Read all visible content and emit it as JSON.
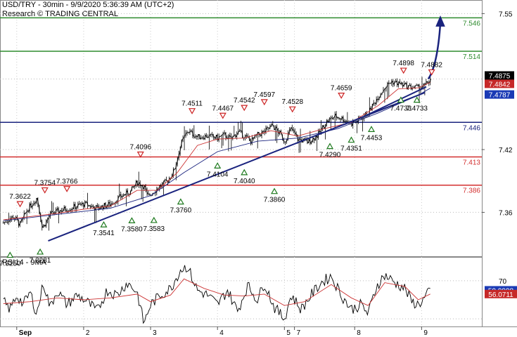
{
  "header": {
    "line1": "USD/TRY - 30min - 9/9/2020 5:36:39 AM (UTC+2)",
    "line2": "Research © TRADING CENTRAL"
  },
  "rsi_header": "RSI14 - 9MA",
  "colors": {
    "resistance": "#2e8b2e",
    "pivot": "#1a237e",
    "support": "#d32f2f",
    "price": "#000000",
    "ma": "#cc3333",
    "trendline": "#1a237e",
    "arrow": "#1a237e",
    "marker_red": "#cc2222",
    "marker_green": "#1e7a1e"
  },
  "chart_data": [
    {
      "type": "line",
      "subtype": "candlestick",
      "yaxis_side": "right",
      "ylim": [
        7.318,
        7.563
      ],
      "y_ticks": [
        7.36,
        7.42,
        7.55
      ],
      "x_ticks": [
        {
          "label": "Sep",
          "x": 0
        },
        {
          "label": "2",
          "x": 1
        },
        {
          "label": "3",
          "x": 2
        },
        {
          "label": "4",
          "x": 3
        },
        {
          "label": "5",
          "x": 4
        },
        {
          "label": "7",
          "x": 4.15
        },
        {
          "label": "8",
          "x": 5.05
        },
        {
          "label": "9",
          "x": 6.05
        }
      ],
      "xlim": [
        -0.25,
        6.95
      ],
      "hlines": [
        {
          "value": 7.546,
          "label": "7.546",
          "role": "resistance"
        },
        {
          "value": 7.514,
          "label": "7.514",
          "role": "resistance"
        },
        {
          "value": 7.446,
          "label": "7.446",
          "role": "pivot"
        },
        {
          "value": 7.413,
          "label": "7.413",
          "role": "support"
        },
        {
          "value": 7.386,
          "label": "7.386",
          "role": "support"
        }
      ],
      "price_labels": [
        {
          "label": "7.4875",
          "value": 7.4875,
          "style": "black"
        },
        {
          "label": "7.4842",
          "value": 7.4842,
          "style": "red"
        },
        {
          "label": "7.4787",
          "value": 7.4787,
          "style": "blue"
        }
      ],
      "price_path": [
        {
          "x": -0.2,
          "y": 7.35
        },
        {
          "x": -0.05,
          "y": 7.356
        },
        {
          "x": 0.05,
          "y": 7.348
        },
        {
          "x": 0.15,
          "y": 7.362
        },
        {
          "x": 0.3,
          "y": 7.374
        },
        {
          "x": 0.38,
          "y": 7.345
        },
        {
          "x": 0.5,
          "y": 7.358
        },
        {
          "x": 0.65,
          "y": 7.362
        },
        {
          "x": 0.8,
          "y": 7.364
        },
        {
          "x": 1.0,
          "y": 7.368
        },
        {
          "x": 1.2,
          "y": 7.364
        },
        {
          "x": 1.4,
          "y": 7.368
        },
        {
          "x": 1.55,
          "y": 7.375
        },
        {
          "x": 1.7,
          "y": 7.38
        },
        {
          "x": 1.8,
          "y": 7.389
        },
        {
          "x": 1.9,
          "y": 7.385
        },
        {
          "x": 1.95,
          "y": 7.375
        },
        {
          "x": 2.1,
          "y": 7.383
        },
        {
          "x": 2.25,
          "y": 7.39
        },
        {
          "x": 2.35,
          "y": 7.4
        },
        {
          "x": 2.45,
          "y": 7.425
        },
        {
          "x": 2.55,
          "y": 7.438
        },
        {
          "x": 2.7,
          "y": 7.432
        },
        {
          "x": 2.85,
          "y": 7.433
        },
        {
          "x": 3.0,
          "y": 7.431
        },
        {
          "x": 3.1,
          "y": 7.434
        },
        {
          "x": 3.2,
          "y": 7.43
        },
        {
          "x": 3.3,
          "y": 7.437
        },
        {
          "x": 3.4,
          "y": 7.433
        },
        {
          "x": 3.5,
          "y": 7.428
        },
        {
          "x": 3.6,
          "y": 7.434
        },
        {
          "x": 3.7,
          "y": 7.437
        },
        {
          "x": 3.82,
          "y": 7.443
        },
        {
          "x": 3.92,
          "y": 7.436
        },
        {
          "x": 4.0,
          "y": 7.428
        },
        {
          "x": 4.1,
          "y": 7.44
        },
        {
          "x": 4.2,
          "y": 7.43
        },
        {
          "x": 4.35,
          "y": 7.427
        },
        {
          "x": 4.5,
          "y": 7.434
        },
        {
          "x": 4.62,
          "y": 7.446
        },
        {
          "x": 4.75,
          "y": 7.452
        },
        {
          "x": 4.85,
          "y": 7.45
        },
        {
          "x": 5.0,
          "y": 7.445
        },
        {
          "x": 5.1,
          "y": 7.448
        },
        {
          "x": 5.25,
          "y": 7.455
        },
        {
          "x": 5.38,
          "y": 7.469
        },
        {
          "x": 5.5,
          "y": 7.48
        },
        {
          "x": 5.6,
          "y": 7.485
        },
        {
          "x": 5.72,
          "y": 7.483
        },
        {
          "x": 5.85,
          "y": 7.48
        },
        {
          "x": 6.0,
          "y": 7.479
        },
        {
          "x": 6.1,
          "y": 7.481
        },
        {
          "x": 6.18,
          "y": 7.4875
        }
      ],
      "ma_path": [
        {
          "x": -0.2,
          "y": 7.353
        },
        {
          "x": 0.2,
          "y": 7.356
        },
        {
          "x": 0.6,
          "y": 7.359
        },
        {
          "x": 1.0,
          "y": 7.363
        },
        {
          "x": 1.4,
          "y": 7.366
        },
        {
          "x": 1.8,
          "y": 7.381
        },
        {
          "x": 2.1,
          "y": 7.381
        },
        {
          "x": 2.4,
          "y": 7.398
        },
        {
          "x": 2.7,
          "y": 7.424
        },
        {
          "x": 3.0,
          "y": 7.43
        },
        {
          "x": 3.4,
          "y": 7.431
        },
        {
          "x": 3.8,
          "y": 7.438
        },
        {
          "x": 4.2,
          "y": 7.433
        },
        {
          "x": 4.6,
          "y": 7.44
        },
        {
          "x": 5.0,
          "y": 7.446
        },
        {
          "x": 5.4,
          "y": 7.462
        },
        {
          "x": 5.7,
          "y": 7.478
        },
        {
          "x": 6.0,
          "y": 7.479
        },
        {
          "x": 6.18,
          "y": 7.4842
        }
      ],
      "blue_ma_path": [
        {
          "x": -0.2,
          "y": 7.352
        },
        {
          "x": 0.6,
          "y": 7.358
        },
        {
          "x": 1.4,
          "y": 7.364
        },
        {
          "x": 2.0,
          "y": 7.376
        },
        {
          "x": 2.5,
          "y": 7.398
        },
        {
          "x": 3.0,
          "y": 7.418
        },
        {
          "x": 3.6,
          "y": 7.428
        },
        {
          "x": 4.2,
          "y": 7.431
        },
        {
          "x": 4.8,
          "y": 7.44
        },
        {
          "x": 5.4,
          "y": 7.455
        },
        {
          "x": 6.0,
          "y": 7.472
        },
        {
          "x": 6.18,
          "y": 7.4787
        }
      ],
      "trendlines": [
        {
          "x1": 0.47,
          "y1": 7.3327,
          "x2": 6.1,
          "y2": 7.4745
        },
        {
          "x1": 5.2,
          "y1": 7.452,
          "x2": 6.12,
          "y2": 7.48
        }
      ],
      "arrow": {
        "x1": 6.15,
        "y1": 7.4875,
        "x2": 6.33,
        "y2": 7.546
      },
      "peaks": [
        {
          "label": "7.3622",
          "x": 0.05,
          "y": 7.3622
        },
        {
          "label": "7.3754",
          "x": 0.42,
          "y": 7.3754
        },
        {
          "label": "7.3766",
          "x": 0.75,
          "y": 7.3766
        },
        {
          "label": "7.4096",
          "x": 1.85,
          "y": 7.4096
        },
        {
          "label": "7.4511",
          "x": 2.62,
          "y": 7.4511
        },
        {
          "label": "7.4467",
          "x": 3.08,
          "y": 7.4467
        },
        {
          "label": "7.4542",
          "x": 3.4,
          "y": 7.4542
        },
        {
          "label": "7.4597",
          "x": 3.7,
          "y": 7.4597
        },
        {
          "label": "7.4528",
          "x": 4.12,
          "y": 7.4528
        },
        {
          "label": "7.4659",
          "x": 4.85,
          "y": 7.4659
        },
        {
          "label": "7.4898",
          "x": 5.78,
          "y": 7.4898
        },
        {
          "label": "7.4882",
          "x": 6.2,
          "y": 7.4882
        }
      ],
      "troughs": [
        {
          "label": "7.3250",
          "x": -0.1,
          "y": 7.325
        },
        {
          "label": "7.3281",
          "x": 0.35,
          "y": 7.3281
        },
        {
          "label": "7.3541",
          "x": 1.3,
          "y": 7.3541
        },
        {
          "label": "7.3580",
          "x": 1.72,
          "y": 7.358
        },
        {
          "label": "7.3583",
          "x": 2.05,
          "y": 7.3583
        },
        {
          "label": "7.3760",
          "x": 2.45,
          "y": 7.376
        },
        {
          "label": "7.4104",
          "x": 3.0,
          "y": 7.4104
        },
        {
          "label": "7.4040",
          "x": 3.4,
          "y": 7.404
        },
        {
          "label": "7.3860",
          "x": 3.85,
          "y": 7.386
        },
        {
          "label": "7.4290",
          "x": 4.68,
          "y": 7.429
        },
        {
          "label": "7.4351",
          "x": 5.0,
          "y": 7.4351
        },
        {
          "label": "7.4453",
          "x": 5.3,
          "y": 7.4453
        },
        {
          "label": "7.4733",
          "x": 5.74,
          "y": 7.4733
        },
        {
          "label": "7.4733",
          "x": 5.98,
          "y": 7.4733
        }
      ]
    },
    {
      "type": "line",
      "title": "RSI14 - 9MA",
      "ylim": [
        22,
        95
      ],
      "y_ticks": [
        70
      ],
      "hlines": [
        70,
        30
      ],
      "value_labels": [
        {
          "label": "59.9998",
          "value": 60.0,
          "style": "blue"
        },
        {
          "label": "56.0711",
          "value": 56.07,
          "style": "red"
        }
      ],
      "rsi_path": [
        {
          "x": -0.2,
          "y": 48
        },
        {
          "x": -0.1,
          "y": 40
        },
        {
          "x": 0.0,
          "y": 55
        },
        {
          "x": 0.1,
          "y": 45
        },
        {
          "x": 0.2,
          "y": 58
        },
        {
          "x": 0.3,
          "y": 35
        },
        {
          "x": 0.4,
          "y": 68
        },
        {
          "x": 0.5,
          "y": 42
        },
        {
          "x": 0.6,
          "y": 60
        },
        {
          "x": 0.75,
          "y": 45
        },
        {
          "x": 0.9,
          "y": 55
        },
        {
          "x": 1.05,
          "y": 48
        },
        {
          "x": 1.2,
          "y": 38
        },
        {
          "x": 1.35,
          "y": 60
        },
        {
          "x": 1.5,
          "y": 55
        },
        {
          "x": 1.65,
          "y": 68
        },
        {
          "x": 1.8,
          "y": 58
        },
        {
          "x": 1.9,
          "y": 25
        },
        {
          "x": 2.0,
          "y": 45
        },
        {
          "x": 2.15,
          "y": 55
        },
        {
          "x": 2.3,
          "y": 62
        },
        {
          "x": 2.45,
          "y": 82
        },
        {
          "x": 2.55,
          "y": 85
        },
        {
          "x": 2.7,
          "y": 60
        },
        {
          "x": 2.85,
          "y": 55
        },
        {
          "x": 3.0,
          "y": 45
        },
        {
          "x": 3.15,
          "y": 60
        },
        {
          "x": 3.3,
          "y": 38
        },
        {
          "x": 3.45,
          "y": 65
        },
        {
          "x": 3.6,
          "y": 50
        },
        {
          "x": 3.7,
          "y": 68
        },
        {
          "x": 3.85,
          "y": 42
        },
        {
          "x": 4.0,
          "y": 30
        },
        {
          "x": 4.1,
          "y": 55
        },
        {
          "x": 4.25,
          "y": 40
        },
        {
          "x": 4.4,
          "y": 55
        },
        {
          "x": 4.55,
          "y": 68
        },
        {
          "x": 4.7,
          "y": 75
        },
        {
          "x": 4.85,
          "y": 55
        },
        {
          "x": 5.0,
          "y": 40
        },
        {
          "x": 5.15,
          "y": 45
        },
        {
          "x": 5.25,
          "y": 35
        },
        {
          "x": 5.38,
          "y": 65
        },
        {
          "x": 5.5,
          "y": 76
        },
        {
          "x": 5.65,
          "y": 68
        },
        {
          "x": 5.8,
          "y": 62
        },
        {
          "x": 5.9,
          "y": 48
        },
        {
          "x": 6.0,
          "y": 45
        },
        {
          "x": 6.1,
          "y": 52
        },
        {
          "x": 6.18,
          "y": 60
        }
      ],
      "ma_path": [
        {
          "x": -0.2,
          "y": 46
        },
        {
          "x": 0.2,
          "y": 48
        },
        {
          "x": 0.6,
          "y": 52
        },
        {
          "x": 1.0,
          "y": 50
        },
        {
          "x": 1.4,
          "y": 52
        },
        {
          "x": 1.8,
          "y": 56
        },
        {
          "x": 2.0,
          "y": 48
        },
        {
          "x": 2.3,
          "y": 55
        },
        {
          "x": 2.5,
          "y": 72
        },
        {
          "x": 2.8,
          "y": 62
        },
        {
          "x": 3.1,
          "y": 55
        },
        {
          "x": 3.4,
          "y": 54
        },
        {
          "x": 3.7,
          "y": 56
        },
        {
          "x": 4.0,
          "y": 44
        },
        {
          "x": 4.3,
          "y": 48
        },
        {
          "x": 4.7,
          "y": 66
        },
        {
          "x": 5.0,
          "y": 52
        },
        {
          "x": 5.25,
          "y": 44
        },
        {
          "x": 5.5,
          "y": 68
        },
        {
          "x": 5.8,
          "y": 64
        },
        {
          "x": 6.0,
          "y": 50
        },
        {
          "x": 6.18,
          "y": 56.07
        }
      ]
    }
  ]
}
